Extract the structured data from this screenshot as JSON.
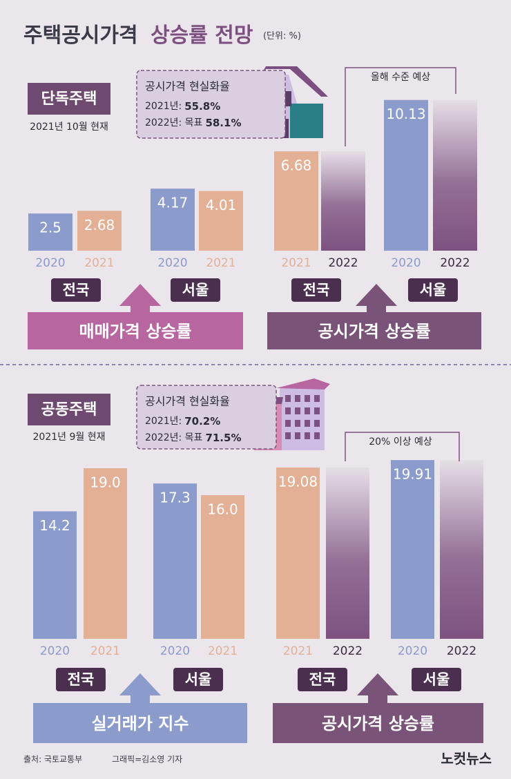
{
  "title_main": "주택공시가격",
  "title_accent": "상승률 전망",
  "unit": "(단위: %)",
  "chart_data": [
    {
      "type": "bar",
      "section": "단독주택",
      "as_of": "2021년 10월 현재",
      "info": {
        "title": "공시가격 현실화율",
        "rows": [
          {
            "label": "2021년:",
            "value": "55.8%"
          },
          {
            "label": "2022년: 목표",
            "value": "58.1%"
          }
        ]
      },
      "note": "올해 수준 예상",
      "ylim": [
        0,
        11
      ],
      "colors": {
        "2020": "#8b9bcb",
        "2021": "#e3b095",
        "2022": "#7d5280"
      },
      "groups": [
        {
          "name": "전국",
          "categories": [
            "2020",
            "2021"
          ],
          "values": [
            2.5,
            2.68
          ]
        },
        {
          "name": "서울",
          "categories": [
            "2020",
            "2021"
          ],
          "values": [
            4.17,
            4.01
          ]
        },
        {
          "name": "전국",
          "categories": [
            "2021",
            "2022"
          ],
          "values": [
            6.68,
            null
          ]
        },
        {
          "name": "서울",
          "categories": [
            "2020",
            "2022"
          ],
          "values": [
            10.13,
            null
          ]
        }
      ],
      "panels": [
        {
          "title": "매매가격 상승률",
          "color": "#b8669f"
        },
        {
          "title": "공시가격 상승률",
          "color": "#7a5478"
        }
      ]
    },
    {
      "type": "bar",
      "section": "공동주택",
      "as_of": "2021년 9월 현재",
      "info": {
        "title": "공시가격 현실화율",
        "rows": [
          {
            "label": "2021년:",
            "value": "70.2%"
          },
          {
            "label": "2022년: 목표",
            "value": "71.5%"
          }
        ]
      },
      "note": "20% 이상 예상",
      "ylim": [
        0,
        20
      ],
      "colors": {
        "2020": "#8b9bcb",
        "2021": "#e3b095",
        "2022": "#7d5280"
      },
      "groups": [
        {
          "name": "전국",
          "categories": [
            "2020",
            "2021"
          ],
          "values": [
            14.2,
            19.0
          ],
          "value_labels": [
            "14.2",
            "19.0"
          ]
        },
        {
          "name": "서울",
          "categories": [
            "2020",
            "2021"
          ],
          "values": [
            17.3,
            16.0
          ],
          "value_labels": [
            "17.3",
            "16.0"
          ]
        },
        {
          "name": "전국",
          "categories": [
            "2021",
            "2022"
          ],
          "values": [
            19.08,
            null
          ]
        },
        {
          "name": "서울",
          "categories": [
            "2020",
            "2022"
          ],
          "values": [
            19.91,
            null
          ]
        }
      ],
      "panels": [
        {
          "title": "실거래가 지수",
          "color": "#8b9bcb"
        },
        {
          "title": "공시가격 상승률",
          "color": "#7a5478"
        }
      ]
    }
  ],
  "footer": {
    "source": "출처: 국토교통부",
    "credit": "그래픽=김소영 기자",
    "logo": "노컷뉴스"
  }
}
